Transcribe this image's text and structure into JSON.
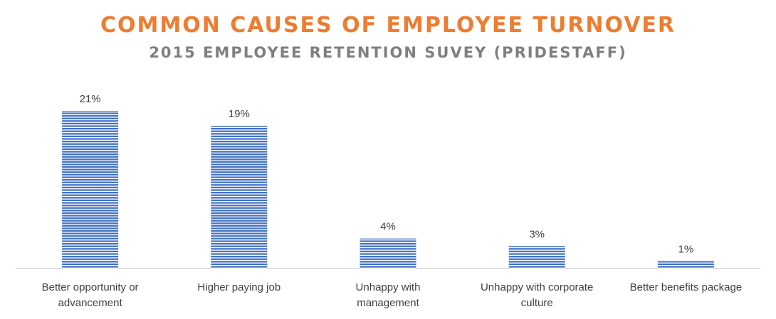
{
  "chart_data": {
    "type": "bar",
    "title": "COMMON CAUSES OF EMPLOYEE TURNOVER",
    "subtitle": "2015 EMPLOYEE RETENTION SUVEY (PRIDESTAFF)",
    "categories": [
      [
        "Better opportunity or",
        "advancement"
      ],
      [
        "Higher paying job"
      ],
      [
        "Unhappy with",
        "management"
      ],
      [
        "Unhappy with corporate",
        "culture"
      ],
      [
        "Better benefits package"
      ]
    ],
    "values": [
      21,
      19,
      4,
      3,
      1
    ],
    "value_labels": [
      "21%",
      "19%",
      "4%",
      "3%",
      "1%"
    ],
    "ylim": [
      0,
      21
    ],
    "grid": false,
    "bar_color": "#4472c4"
  }
}
